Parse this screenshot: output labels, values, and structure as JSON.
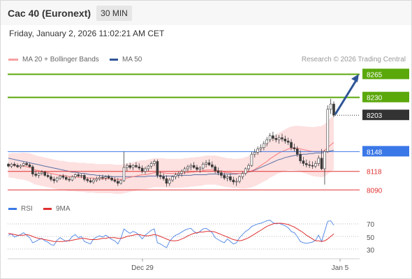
{
  "header": {
    "title": "Cac 40 (Euronext)",
    "timeframe": "30 MIN"
  },
  "datetime": "Friday, January 2, 2026 11:02:21 AM CET",
  "legend": {
    "ma20": "MA 20 + Bollinger Bands",
    "ma50": "MA 50",
    "copyright": "Research © 2026 Trading Central"
  },
  "colors": {
    "ma20": "#f47c7c",
    "ma50": "#2f5597",
    "green": "#5aa80a",
    "blue": "#3b78e7",
    "red": "#e03030"
  },
  "price_levels": [
    {
      "label": "8265",
      "kind": "resistance",
      "color": "#5aa80a"
    },
    {
      "label": "8230",
      "kind": "resistance",
      "color": "#5aa80a"
    },
    {
      "label": "8203",
      "kind": "last",
      "color": "#333333"
    },
    {
      "label": "8148",
      "kind": "pivot",
      "color": "#3b78e7"
    },
    {
      "label": "8118",
      "kind": "support",
      "color": "#e03030"
    },
    {
      "label": "8090",
      "kind": "support",
      "color": "#e03030"
    }
  ],
  "rsi": {
    "label": "RSI",
    "ma_label": "9MA",
    "levels": [
      "70",
      "50",
      "30"
    ]
  },
  "x_axis": [
    "Dec 29",
    "Jan 5"
  ],
  "chart_data": {
    "type": "candlestick",
    "price_range": [
      8085,
      8275
    ],
    "rsi_range": [
      20,
      80
    ],
    "candles": [
      [
        8129,
        8131,
        8124,
        8126
      ],
      [
        8126,
        8131,
        8123,
        8129
      ],
      [
        8129,
        8132,
        8125,
        8127
      ],
      [
        8127,
        8130,
        8123,
        8125
      ],
      [
        8125,
        8129,
        8122,
        8127
      ],
      [
        8127,
        8132,
        8125,
        8130
      ],
      [
        8130,
        8133,
        8126,
        8128
      ],
      [
        8128,
        8131,
        8124,
        8125
      ],
      [
        8125,
        8128,
        8110,
        8114
      ],
      [
        8114,
        8119,
        8109,
        8112
      ],
      [
        8112,
        8117,
        8108,
        8115
      ],
      [
        8115,
        8120,
        8112,
        8117
      ],
      [
        8117,
        8119,
        8110,
        8112
      ],
      [
        8112,
        8116,
        8108,
        8110
      ],
      [
        8110,
        8114,
        8103,
        8106
      ],
      [
        8106,
        8110,
        8100,
        8104
      ],
      [
        8104,
        8110,
        8101,
        8108
      ],
      [
        8108,
        8113,
        8105,
        8111
      ],
      [
        8111,
        8114,
        8106,
        8109
      ],
      [
        8109,
        8112,
        8104,
        8106
      ],
      [
        8106,
        8110,
        8102,
        8105
      ],
      [
        8105,
        8112,
        8103,
        8110
      ],
      [
        8110,
        8115,
        8107,
        8113
      ],
      [
        8113,
        8116,
        8109,
        8111
      ],
      [
        8111,
        8114,
        8108,
        8112
      ],
      [
        8112,
        8114,
        8103,
        8106
      ],
      [
        8106,
        8109,
        8101,
        8104
      ],
      [
        8104,
        8108,
        8100,
        8102
      ],
      [
        8102,
        8108,
        8099,
        8105
      ],
      [
        8105,
        8110,
        8102,
        8107
      ],
      [
        8107,
        8112,
        8104,
        8109
      ],
      [
        8109,
        8113,
        8105,
        8108
      ],
      [
        8108,
        8112,
        8104,
        8110
      ],
      [
        8110,
        8113,
        8106,
        8108
      ],
      [
        8108,
        8111,
        8103,
        8105
      ],
      [
        8105,
        8109,
        8101,
        8103
      ],
      [
        8103,
        8108,
        8096,
        8100
      ],
      [
        8100,
        8106,
        8098,
        8104
      ],
      [
        8104,
        8148,
        8102,
        8124
      ],
      [
        8124,
        8130,
        8118,
        8127
      ],
      [
        8127,
        8131,
        8121,
        8124
      ],
      [
        8124,
        8129,
        8120,
        8127
      ],
      [
        8127,
        8132,
        8123,
        8125
      ],
      [
        8125,
        8130,
        8120,
        8123
      ],
      [
        8123,
        8127,
        8115,
        8118
      ],
      [
        8118,
        8125,
        8114,
        8122
      ],
      [
        8122,
        8128,
        8118,
        8126
      ],
      [
        8126,
        8133,
        8122,
        8130
      ],
      [
        8130,
        8136,
        8126,
        8133
      ],
      [
        8133,
        8136,
        8108,
        8112
      ],
      [
        8112,
        8118,
        8106,
        8110
      ],
      [
        8110,
        8115,
        8104,
        8107
      ],
      [
        8107,
        8112,
        8095,
        8100
      ],
      [
        8100,
        8108,
        8096,
        8105
      ],
      [
        8105,
        8112,
        8102,
        8110
      ],
      [
        8110,
        8116,
        8106,
        8113
      ],
      [
        8113,
        8118,
        8108,
        8115
      ],
      [
        8115,
        8121,
        8110,
        8118
      ],
      [
        8118,
        8125,
        8114,
        8122
      ],
      [
        8122,
        8128,
        8117,
        8125
      ],
      [
        8125,
        8130,
        8120,
        8127
      ],
      [
        8127,
        8132,
        8122,
        8124
      ],
      [
        8124,
        8128,
        8118,
        8121
      ],
      [
        8121,
        8126,
        8116,
        8123
      ],
      [
        8123,
        8132,
        8120,
        8129
      ],
      [
        8129,
        8135,
        8124,
        8131
      ],
      [
        8131,
        8136,
        8126,
        8128
      ],
      [
        8128,
        8133,
        8122,
        8125
      ],
      [
        8125,
        8128,
        8115,
        8119
      ],
      [
        8119,
        8124,
        8112,
        8116
      ],
      [
        8116,
        8120,
        8108,
        8112
      ],
      [
        8112,
        8116,
        8105,
        8108
      ],
      [
        8108,
        8113,
        8103,
        8110
      ],
      [
        8110,
        8115,
        8102,
        8105
      ],
      [
        8105,
        8110,
        8098,
        8102
      ],
      [
        8102,
        8108,
        8096,
        8103
      ],
      [
        8103,
        8112,
        8100,
        8110
      ],
      [
        8110,
        8118,
        8106,
        8115
      ],
      [
        8115,
        8124,
        8112,
        8122
      ],
      [
        8122,
        8130,
        8118,
        8127
      ],
      [
        8127,
        8148,
        8125,
        8144
      ],
      [
        8144,
        8152,
        8139,
        8147
      ],
      [
        8147,
        8156,
        8143,
        8152
      ],
      [
        8152,
        8159,
        8147,
        8154
      ],
      [
        8154,
        8164,
        8150,
        8160
      ],
      [
        8160,
        8170,
        8156,
        8166
      ],
      [
        8166,
        8176,
        8162,
        8172
      ],
      [
        8172,
        8178,
        8164,
        8168
      ],
      [
        8168,
        8174,
        8162,
        8166
      ],
      [
        8166,
        8173,
        8160,
        8169
      ],
      [
        8169,
        8175,
        8163,
        8167
      ],
      [
        8167,
        8172,
        8160,
        8164
      ],
      [
        8164,
        8169,
        8158,
        8162
      ],
      [
        8162,
        8167,
        8150,
        8154
      ],
      [
        8154,
        8160,
        8148,
        8152
      ],
      [
        8152,
        8156,
        8140,
        8144
      ],
      [
        8144,
        8150,
        8130,
        8134
      ],
      [
        8134,
        8140,
        8126,
        8130
      ],
      [
        8130,
        8136,
        8124,
        8128
      ],
      [
        8128,
        8134,
        8123,
        8127
      ],
      [
        8127,
        8133,
        8122,
        8126
      ],
      [
        8126,
        8134,
        8123,
        8130
      ],
      [
        8130,
        8142,
        8126,
        8138
      ],
      [
        8138,
        8152,
        8120,
        8122
      ],
      [
        8122,
        8150,
        8098,
        8148
      ],
      [
        8148,
        8218,
        8146,
        8212
      ],
      [
        8212,
        8228,
        8205,
        8220
      ],
      [
        8220,
        8224,
        8200,
        8203
      ]
    ],
    "ma20": [
      8127,
      8127,
      8127,
      8126,
      8126,
      8126,
      8125,
      8124,
      8122,
      8120,
      8119,
      8118,
      8117,
      8116,
      8115,
      8114,
      8113,
      8112,
      8112,
      8111,
      8110,
      8110,
      8110,
      8109,
      8109,
      8109,
      8108,
      8108,
      8108,
      8107,
      8107,
      8107,
      8107,
      8107,
      8107,
      8106,
      8106,
      8106,
      8107,
      8108,
      8109,
      8110,
      8111,
      8112,
      8113,
      8113,
      8114,
      8115,
      8116,
      8116,
      8116,
      8116,
      8115,
      8115,
      8115,
      8115,
      8115,
      8115,
      8116,
      8116,
      8117,
      8117,
      8118,
      8118,
      8119,
      8120,
      8120,
      8120,
      8120,
      8119,
      8118,
      8117,
      8116,
      8116,
      8115,
      8115,
      8115,
      8115,
      8116,
      8117,
      8119,
      8121,
      8124,
      8127,
      8130,
      8133,
      8137,
      8140,
      8143,
      8146,
      8148,
      8150,
      8152,
      8153,
      8153,
      8153,
      8152,
      8151,
      8150,
      8149,
      8148,
      8148,
      8148,
      8148,
      8150,
      8154,
      8158,
      8162
    ],
    "ma50": [
      8138,
      8137,
      8136,
      8135,
      8134,
      8133,
      8132,
      8131,
      8130,
      8129,
      8128,
      8127,
      8126,
      8125,
      8124,
      8123,
      8122,
      8121,
      8120,
      8119,
      8118,
      8117,
      8117,
      8116,
      8115,
      8115,
      8114,
      8113,
      8113,
      8112,
      8112,
      8111,
      8111,
      8111,
      8110,
      8110,
      8110,
      8110,
      8110,
      8110,
      8110,
      8110,
      8110,
      8110,
      8110,
      8110,
      8111,
      8111,
      8111,
      8111,
      8111,
      8111,
      8111,
      8111,
      8111,
      8111,
      8112,
      8112,
      8112,
      8112,
      8112,
      8113,
      8113,
      8113,
      8113,
      8113,
      8114,
      8114,
      8114,
      8114,
      8114,
      8114,
      8114,
      8114,
      8114,
      8114,
      8115,
      8115,
      8116,
      8117,
      8118,
      8120,
      8122,
      8124,
      8126,
      8128,
      8130,
      8132,
      8134,
      8136,
      8137,
      8139,
      8140,
      8141,
      8142,
      8143,
      8143,
      8144,
      8144,
      8145,
      8145,
      8146,
      8146,
      8146,
      8147,
      8148,
      8149,
      8150
    ],
    "rsi": [
      52,
      54,
      49,
      51,
      53,
      56,
      52,
      48,
      40,
      42,
      45,
      47,
      43,
      41,
      37,
      36,
      44,
      48,
      45,
      42,
      44,
      50,
      53,
      48,
      50,
      42,
      40,
      38,
      46,
      49,
      51,
      49,
      52,
      49,
      45,
      43,
      38,
      47,
      62,
      58,
      55,
      58,
      56,
      52,
      46,
      52,
      56,
      60,
      62,
      40,
      38,
      35,
      32,
      42,
      48,
      52,
      54,
      57,
      60,
      62,
      63,
      58,
      55,
      58,
      62,
      63,
      60,
      56,
      48,
      45,
      42,
      40,
      46,
      42,
      38,
      40,
      48,
      53,
      58,
      61,
      66,
      68,
      70,
      71,
      73,
      75,
      76,
      72,
      70,
      71,
      69,
      67,
      64,
      58,
      56,
      50,
      42,
      40,
      39,
      40,
      41,
      44,
      52,
      42,
      58,
      74,
      75,
      68
    ],
    "rsi_ma": [
      55,
      54,
      53,
      52,
      52,
      52,
      53,
      52,
      50,
      48,
      47,
      46,
      45,
      44,
      43,
      42,
      42,
      42,
      42,
      43,
      43,
      44,
      45,
      46,
      47,
      47,
      46,
      45,
      45,
      45,
      46,
      47,
      47,
      48,
      48,
      48,
      47,
      47,
      48,
      50,
      51,
      52,
      53,
      53,
      52,
      51,
      51,
      52,
      53,
      52,
      50,
      48,
      46,
      44,
      43,
      43,
      44,
      46,
      48,
      51,
      53,
      55,
      56,
      57,
      57,
      58,
      58,
      58,
      57,
      55,
      53,
      51,
      49,
      47,
      45,
      44,
      43,
      44,
      46,
      48,
      51,
      54,
      57,
      60,
      63,
      66,
      68,
      70,
      71,
      71,
      71,
      70,
      69,
      67,
      65,
      62,
      59,
      56,
      52,
      49,
      46,
      43,
      43,
      42,
      43,
      46,
      50,
      54
    ]
  }
}
